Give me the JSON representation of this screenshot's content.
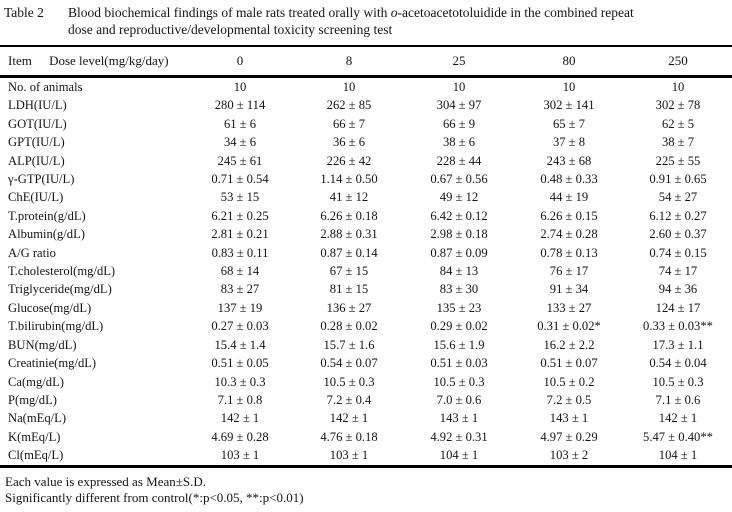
{
  "page": {
    "background": "#ffffff",
    "text_color": "#141414",
    "rule_color": "#000000"
  },
  "table": {
    "label": "Table 2",
    "title": {
      "prefix": "Blood biochemical findings of male rats treated orally with ",
      "italic_term": "o",
      "suffix": "-acetoacetotoluidide in the combined repeat",
      "line2": "dose and reproductive/developmental toxicity screening test"
    },
    "header": {
      "item_label": "Item",
      "dose_label": "Dose level(mg/kg/day)",
      "doses": [
        "0",
        "8",
        "25",
        "80",
        "250"
      ]
    },
    "rows": [
      {
        "label": "No. of animals",
        "values": [
          "10",
          "10",
          "10",
          "10",
          "10"
        ]
      },
      {
        "label": "LDH(IU/L)",
        "values": [
          "280 ± 114",
          "262 ± 85",
          "304 ± 97",
          "302 ± 141",
          "302 ± 78"
        ]
      },
      {
        "label": "GOT(IU/L)",
        "values": [
          "61 ± 6",
          "66 ± 7",
          "66 ± 9",
          "65 ± 7",
          "62 ± 5"
        ]
      },
      {
        "label": "GPT(IU/L)",
        "values": [
          "34 ± 6",
          "36 ± 6",
          "38 ± 6",
          "37 ± 8",
          "38 ± 7"
        ]
      },
      {
        "label": "ALP(IU/L)",
        "values": [
          "245 ± 61",
          "226 ± 42",
          "228 ± 44",
          "243 ± 68",
          "225 ± 55"
        ]
      },
      {
        "label": "γ-GTP(IU/L)",
        "values": [
          "0.71 ± 0.54",
          "1.14 ± 0.50",
          "0.67 ± 0.56",
          "0.48 ± 0.33",
          "0.91 ± 0.65"
        ]
      },
      {
        "label": "ChE(IU/L)",
        "values": [
          "53 ± 15",
          "41 ± 12",
          "49 ± 12",
          "44 ± 19",
          "54 ± 27"
        ]
      },
      {
        "label": "T.protein(g/dL)",
        "values": [
          "6.21 ± 0.25",
          "6.26 ± 0.18",
          "6.42 ± 0.12",
          "6.26 ± 0.15",
          "6.12 ± 0.27"
        ]
      },
      {
        "label": "Albumin(g/dL)",
        "values": [
          "2.81 ± 0.21",
          "2.88 ± 0.31",
          "2.98 ± 0.18",
          "2.74 ± 0.28",
          "2.60 ± 0.37"
        ]
      },
      {
        "label": "A/G ratio",
        "values": [
          "0.83 ± 0.11",
          "0.87 ± 0.14",
          "0.87 ± 0.09",
          "0.78 ± 0.13",
          "0.74 ± 0.15"
        ]
      },
      {
        "label": "T.cholesterol(mg/dL)",
        "values": [
          "68 ± 14",
          "67 ± 15",
          "84 ± 13",
          "76 ± 17",
          "74 ± 17"
        ]
      },
      {
        "label": "Triglyceride(mg/dL)",
        "values": [
          "83 ± 27",
          "81 ± 15",
          "83 ± 30",
          "91 ± 34",
          "94 ± 36"
        ]
      },
      {
        "label": "Glucose(mg/dL)",
        "values": [
          "137 ± 19",
          "136 ± 27",
          "135 ± 23",
          "133 ± 27",
          "124 ± 17"
        ]
      },
      {
        "label": "T.bilirubin(mg/dL)",
        "values": [
          "0.27 ± 0.03",
          "0.28 ± 0.02",
          "0.29 ± 0.02",
          "0.31 ± 0.02*",
          "0.33 ± 0.03**"
        ]
      },
      {
        "label": "BUN(mg/dL)",
        "values": [
          "15.4 ± 1.4",
          "15.7 ± 1.6",
          "15.6 ± 1.9",
          "16.2 ± 2.2",
          "17.3 ± 1.1"
        ]
      },
      {
        "label": "Creatinie(mg/dL)",
        "values": [
          "0.51 ± 0.05",
          "0.54 ± 0.07",
          "0.51 ± 0.03",
          "0.51 ± 0.07",
          "0.54 ± 0.04"
        ]
      },
      {
        "label": "Ca(mg/dL)",
        "values": [
          "10.3 ± 0.3",
          "10.5 ± 0.3",
          "10.5 ± 0.3",
          "10.5 ± 0.2",
          "10.5 ± 0.3"
        ]
      },
      {
        "label": "P(mg/dL)",
        "values": [
          "7.1 ± 0.8",
          "7.2 ± 0.4",
          "7.0 ± 0.6",
          "7.2 ± 0.5",
          "7.1 ± 0.6"
        ]
      },
      {
        "label": "Na(mEq/L)",
        "values": [
          "142 ± 1",
          "142 ± 1",
          "143 ± 1",
          "143 ± 1",
          "142 ± 1"
        ]
      },
      {
        "label": "K(mEq/L)",
        "values": [
          "4.69 ± 0.28",
          "4.76 ± 0.18",
          "4.92 ± 0.31",
          "4.97 ± 0.29",
          "5.47 ± 0.40**"
        ]
      },
      {
        "label": "Cl(mEq/L)",
        "values": [
          "103 ± 1",
          "103 ± 1",
          "104 ± 1",
          "103 ± 2",
          "104 ± 1"
        ]
      }
    ],
    "footnotes": [
      "Each value is expressed as Mean±S.D.",
      "Significantly different from control(*:p<0.05, **:p<0.01)"
    ]
  }
}
